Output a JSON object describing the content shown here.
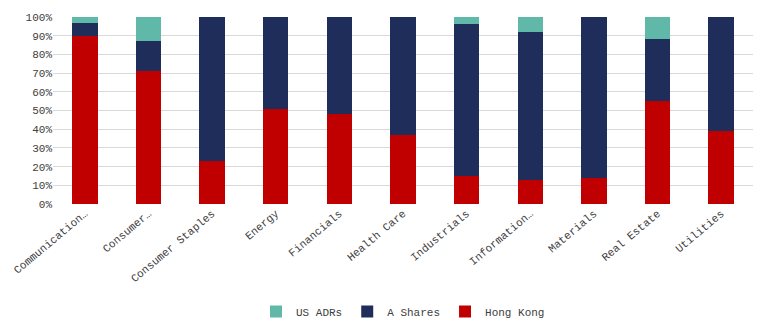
{
  "chart_data": {
    "type": "bar",
    "stacked": true,
    "grid": true,
    "legend": "bottom",
    "categories": [
      "Communication…",
      "Consumer…",
      "Consumer Staples",
      "Energy",
      "Financials",
      "Health Care",
      "Industrials",
      "Information…",
      "Materials",
      "Real Estate",
      "Utilities"
    ],
    "series": [
      {
        "name": "Hong Kong",
        "color": "#c00000",
        "values": [
          90,
          71,
          23,
          51,
          48,
          37,
          15,
          13,
          14,
          55,
          39
        ]
      },
      {
        "name": "A Shares",
        "color": "#1f2d5a",
        "values": [
          7,
          16,
          77,
          49,
          52,
          63,
          81,
          79,
          86,
          33,
          61
        ]
      },
      {
        "name": "US ADRs",
        "color": "#5fb8a8",
        "values": [
          3,
          13,
          0,
          0,
          0,
          0,
          4,
          8,
          0,
          12,
          0
        ]
      }
    ],
    "ylim": [
      0,
      100
    ],
    "yticks": [
      {
        "value": 0,
        "label": "0%"
      },
      {
        "value": 10,
        "label": "10%"
      },
      {
        "value": 20,
        "label": "20%"
      },
      {
        "value": 30,
        "label": "30%"
      },
      {
        "value": 40,
        "label": "40%"
      },
      {
        "value": 50,
        "label": "50%"
      },
      {
        "value": 60,
        "label": "60%"
      },
      {
        "value": 70,
        "label": "70%"
      },
      {
        "value": 80,
        "label": "80%"
      },
      {
        "value": 90,
        "label": "90%"
      },
      {
        "value": 100,
        "label": "100%"
      }
    ]
  }
}
